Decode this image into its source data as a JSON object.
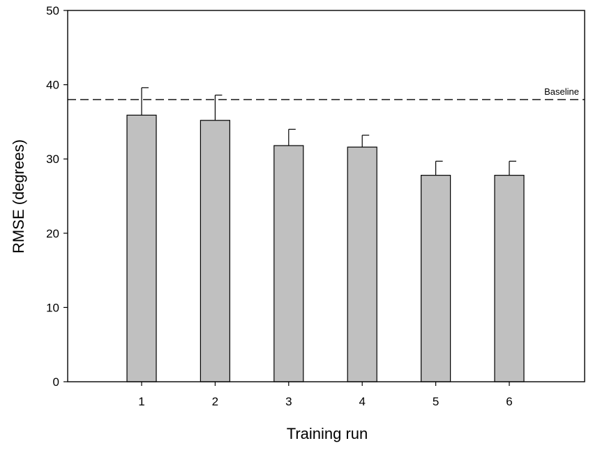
{
  "chart_data": {
    "type": "bar",
    "title": "",
    "xlabel": "Training run",
    "ylabel": "RMSE (degrees)",
    "categories": [
      "1",
      "2",
      "3",
      "4",
      "5",
      "6"
    ],
    "values": [
      35.9,
      35.2,
      31.8,
      31.6,
      27.8,
      27.8
    ],
    "errors": [
      3.7,
      3.4,
      2.2,
      1.6,
      1.9,
      1.9
    ],
    "ylim": [
      0,
      50
    ],
    "yticks": [
      0,
      10,
      20,
      30,
      40,
      50
    ],
    "reference_line": {
      "label": "Baseline",
      "value": 38
    },
    "grid": false,
    "bar_color": "#c0c0c0",
    "edge_color": "#000000"
  }
}
